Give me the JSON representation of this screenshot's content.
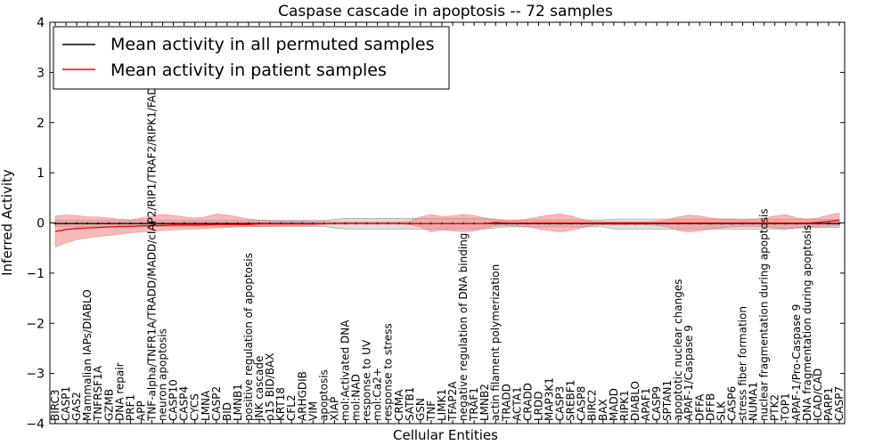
{
  "chart_data": {
    "type": "line",
    "title": "Caspase cascade in apoptosis -- 72 samples",
    "xlabel": "Cellular Entities",
    "ylabel": "Inferred Activity",
    "ylim": [
      -4,
      4
    ],
    "yticks": [
      -4,
      -3,
      -2,
      -1,
      0,
      1,
      2,
      3,
      4
    ],
    "legend_position": "top-left",
    "categories": [
      "BIRC3",
      "CASP1",
      "GAS2",
      "Mammalian IAPs/DIABLO",
      "TNFRSF1A",
      "GZMB",
      "DNA repair",
      "PRF1",
      "APP",
      "TNF-alpha/TNFR1A/TRADD/MADD/cIAP2/RIP1/TRAF2/RIPK1/FADD",
      "neuron apoptosis",
      "CASP10",
      "CASP4",
      "CYCS",
      "LMNA",
      "CASP2",
      "BID",
      "LMNB1",
      "positive regulation of apoptosis",
      "JNK cascade",
      "p15 BID/BAX",
      "KRT18",
      "CFL2",
      "ARHGDIB",
      "VIM",
      "apoptosis",
      "XIAP",
      "mol:Activated DNA",
      "mol:NAD",
      "response to UV",
      "mol:Ca2+",
      "response to stress",
      "CRMA",
      "SATB1",
      "GSN",
      "TNF",
      "LIMK1",
      "TFAP2A",
      "negative regulation of DNA binding",
      "TRAF1",
      "LMNB2",
      "actin filament polymerization",
      "TRADD",
      "ACTA1",
      "CRADD",
      "LRDD",
      "MAP3K1",
      "CASP3",
      "SREBF1",
      "CASP8",
      "BIRC2",
      "BAX",
      "MADD",
      "RIPK1",
      "DIABLO",
      "APAF1",
      "CASP9",
      "SPTAN1",
      "apoptotic nuclear changes",
      "APAF-1/Caspase 9",
      "DFFA",
      "DFFB",
      "SLK",
      "CASP6",
      "stress fiber formation",
      "NUMA1",
      "nuclear fragmentation during apoptosis",
      "PTK2",
      "TOP1",
      "APAF-1/Pro-Caspase 9",
      "DNA fragmentation during apoptosis",
      "ICAD/CAD",
      "PARP1",
      "CASP7"
    ],
    "series": [
      {
        "name": "Mean activity in all permuted samples",
        "color": "#000000",
        "band_color": "#bbbbbb",
        "values": [
          -0.01,
          -0.01,
          -0.01,
          -0.01,
          -0.01,
          -0.01,
          -0.01,
          -0.01,
          -0.01,
          -0.01,
          -0.01,
          -0.01,
          -0.01,
          -0.01,
          -0.01,
          -0.01,
          -0.01,
          -0.01,
          -0.01,
          -0.01,
          -0.01,
          -0.01,
          -0.01,
          -0.01,
          -0.01,
          -0.01,
          -0.01,
          -0.01,
          -0.01,
          -0.01,
          -0.01,
          -0.01,
          -0.01,
          -0.01,
          -0.01,
          -0.01,
          -0.01,
          -0.01,
          -0.01,
          -0.01,
          -0.01,
          -0.01,
          -0.01,
          -0.01,
          -0.01,
          -0.01,
          -0.01,
          -0.01,
          -0.01,
          -0.01,
          -0.01,
          -0.01,
          -0.01,
          -0.01,
          -0.01,
          -0.01,
          -0.01,
          -0.01,
          -0.01,
          -0.01,
          -0.01,
          -0.01,
          -0.01,
          -0.01,
          -0.01,
          -0.01,
          -0.01,
          -0.01,
          -0.01,
          -0.01,
          -0.01,
          -0.01,
          -0.01,
          -0.01
        ],
        "lower": [
          -0.07,
          -0.07,
          -0.07,
          -0.07,
          -0.07,
          -0.07,
          -0.07,
          -0.07,
          -0.07,
          -0.07,
          -0.07,
          -0.07,
          -0.07,
          -0.07,
          -0.07,
          -0.07,
          -0.07,
          -0.07,
          -0.07,
          -0.07,
          -0.07,
          -0.07,
          -0.07,
          -0.07,
          -0.07,
          -0.07,
          -0.1,
          -0.12,
          -0.12,
          -0.12,
          -0.12,
          -0.12,
          -0.12,
          -0.12,
          -0.12,
          -0.12,
          -0.12,
          -0.12,
          -0.12,
          -0.12,
          -0.12,
          -0.1,
          -0.08,
          -0.08,
          -0.08,
          -0.08,
          -0.08,
          -0.08,
          -0.08,
          -0.08,
          -0.08,
          -0.08,
          -0.12,
          -0.12,
          -0.12,
          -0.12,
          -0.12,
          -0.12,
          -0.12,
          -0.12,
          -0.12,
          -0.12,
          -0.12,
          -0.12,
          -0.12,
          -0.12,
          -0.12,
          -0.12,
          -0.12,
          -0.1,
          -0.1,
          -0.09,
          -0.09,
          -0.09
        ],
        "upper": [
          0.05,
          0.05,
          0.05,
          0.05,
          0.05,
          0.05,
          0.05,
          0.05,
          0.05,
          0.05,
          0.05,
          0.05,
          0.05,
          0.05,
          0.05,
          0.05,
          0.05,
          0.05,
          0.05,
          0.05,
          0.05,
          0.05,
          0.05,
          0.05,
          0.05,
          0.05,
          0.07,
          0.09,
          0.09,
          0.09,
          0.09,
          0.09,
          0.09,
          0.09,
          0.09,
          0.09,
          0.09,
          0.09,
          0.09,
          0.09,
          0.09,
          0.07,
          0.06,
          0.06,
          0.06,
          0.06,
          0.06,
          0.06,
          0.06,
          0.06,
          0.06,
          0.06,
          0.08,
          0.08,
          0.08,
          0.08,
          0.08,
          0.08,
          0.08,
          0.08,
          0.08,
          0.08,
          0.08,
          0.08,
          0.08,
          0.08,
          0.08,
          0.08,
          0.08,
          0.07,
          0.07,
          0.07,
          0.07,
          0.07
        ]
      },
      {
        "name": "Mean activity in patient samples",
        "color": "#ff0000",
        "band_color": "#f08080",
        "values": [
          -0.17,
          -0.13,
          -0.11,
          -0.1,
          -0.09,
          -0.08,
          -0.07,
          -0.07,
          -0.06,
          -0.05,
          -0.05,
          -0.04,
          -0.04,
          -0.04,
          -0.04,
          -0.03,
          -0.03,
          -0.03,
          -0.03,
          -0.02,
          -0.02,
          -0.02,
          -0.02,
          -0.02,
          -0.02,
          -0.01,
          -0.01,
          -0.01,
          -0.01,
          -0.01,
          -0.01,
          -0.01,
          -0.01,
          -0.01,
          -0.01,
          -0.01,
          -0.01,
          -0.01,
          -0.01,
          -0.01,
          -0.01,
          0.01,
          0.0,
          0.0,
          0.0,
          0.0,
          0.0,
          0.0,
          0.0,
          0.0,
          0.0,
          0.0,
          0.0,
          0.0,
          0.0,
          0.0,
          0.0,
          0.0,
          0.0,
          0.0,
          0.0,
          0.0,
          0.0,
          0.0,
          0.0,
          0.0,
          0.0,
          0.0,
          0.0,
          0.0,
          0.0,
          0.01,
          0.03,
          0.05
        ],
        "lower": [
          -0.48,
          -0.4,
          -0.33,
          -0.3,
          -0.27,
          -0.25,
          -0.22,
          -0.2,
          -0.18,
          -0.17,
          -0.15,
          -0.14,
          -0.13,
          -0.12,
          -0.11,
          -0.1,
          -0.09,
          -0.08,
          -0.08,
          -0.07,
          -0.06,
          -0.06,
          -0.05,
          -0.05,
          -0.04,
          -0.03,
          -0.02,
          -0.02,
          -0.02,
          -0.02,
          -0.02,
          -0.02,
          -0.02,
          -0.03,
          -0.08,
          -0.18,
          -0.14,
          -0.16,
          -0.18,
          -0.16,
          -0.1,
          -0.06,
          -0.05,
          -0.06,
          -0.08,
          -0.12,
          -0.15,
          -0.18,
          -0.15,
          -0.1,
          -0.05,
          -0.04,
          -0.04,
          -0.04,
          -0.04,
          -0.04,
          -0.05,
          -0.08,
          -0.15,
          -0.18,
          -0.16,
          -0.12,
          -0.1,
          -0.08,
          -0.07,
          -0.07,
          -0.08,
          -0.1,
          -0.12,
          -0.1,
          -0.08,
          -0.07,
          -0.06,
          -0.05
        ],
        "upper": [
          0.14,
          0.16,
          0.15,
          0.12,
          0.12,
          0.1,
          0.08,
          0.06,
          0.1,
          0.14,
          0.17,
          0.15,
          0.12,
          0.1,
          0.12,
          0.18,
          0.16,
          0.12,
          0.08,
          0.06,
          0.05,
          0.04,
          0.04,
          0.04,
          0.03,
          0.03,
          0.02,
          0.02,
          0.02,
          0.02,
          0.02,
          0.02,
          0.02,
          0.03,
          0.12,
          0.17,
          0.13,
          0.14,
          0.17,
          0.15,
          0.1,
          0.07,
          0.04,
          0.05,
          0.08,
          0.12,
          0.16,
          0.18,
          0.14,
          0.08,
          0.03,
          0.02,
          0.02,
          0.02,
          0.02,
          0.02,
          0.03,
          0.06,
          0.12,
          0.16,
          0.14,
          0.1,
          0.08,
          0.07,
          0.06,
          0.07,
          0.1,
          0.14,
          0.17,
          0.1,
          0.08,
          0.1,
          0.16,
          0.2
        ]
      }
    ]
  }
}
